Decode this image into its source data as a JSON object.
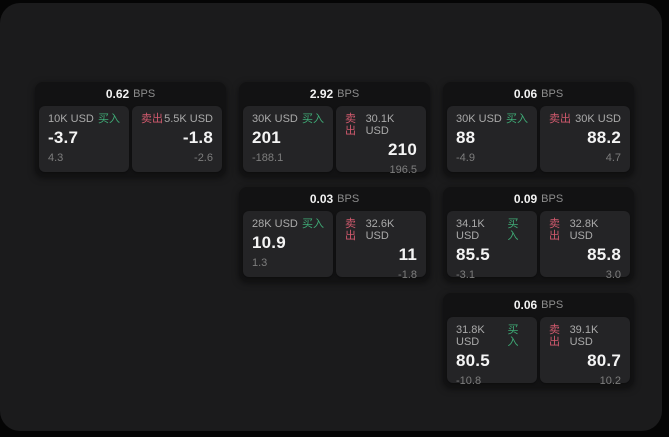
{
  "labels": {
    "buy": "买入",
    "sell": "卖出",
    "bps": "BPS"
  },
  "colors": {
    "background": "#050505",
    "panel": "#1b1b1c",
    "card": "#121213",
    "tile": "#242426",
    "buy_accent": "#3fab76",
    "sell_accent": "#d25a6e",
    "text_primary": "#f4f4f4",
    "text_muted": "#7d7d7d"
  },
  "cards": [
    {
      "bps": "0.62",
      "buy": {
        "amount": "10K USD",
        "price": "-3.7",
        "delta": "4.3"
      },
      "sell": {
        "amount": "5.5K USD",
        "price": "-1.8",
        "delta": "-2.6"
      }
    },
    {
      "bps": "2.92",
      "buy": {
        "amount": "30K USD",
        "price": "201",
        "delta": "-188.1"
      },
      "sell": {
        "amount": "30.1K USD",
        "price": "210",
        "delta": "196.5"
      }
    },
    {
      "bps": "0.06",
      "buy": {
        "amount": "30K USD",
        "price": "88",
        "delta": "-4.9"
      },
      "sell": {
        "amount": "30K USD",
        "price": "88.2",
        "delta": "4.7"
      }
    },
    {
      "bps": "0.03",
      "buy": {
        "amount": "28K USD",
        "price": "10.9",
        "delta": "1.3"
      },
      "sell": {
        "amount": "32.6K USD",
        "price": "11",
        "delta": "-1.8"
      }
    },
    {
      "bps": "0.09",
      "buy": {
        "amount": "34.1K USD",
        "price": "85.5",
        "delta": "-3.1"
      },
      "sell": {
        "amount": "32.8K USD",
        "price": "85.8",
        "delta": "3.0"
      }
    },
    {
      "bps": "0.06",
      "buy": {
        "amount": "31.8K USD",
        "price": "80.5",
        "delta": "-10.8"
      },
      "sell": {
        "amount": "39.1K USD",
        "price": "80.7",
        "delta": "10.2"
      }
    }
  ]
}
